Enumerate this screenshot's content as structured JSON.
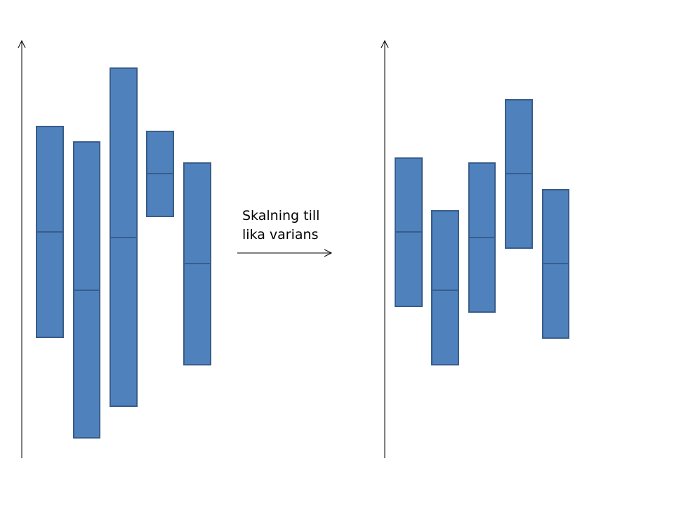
{
  "label": {
    "lines": [
      "Skalning till",
      "lika varians"
    ]
  }
}
